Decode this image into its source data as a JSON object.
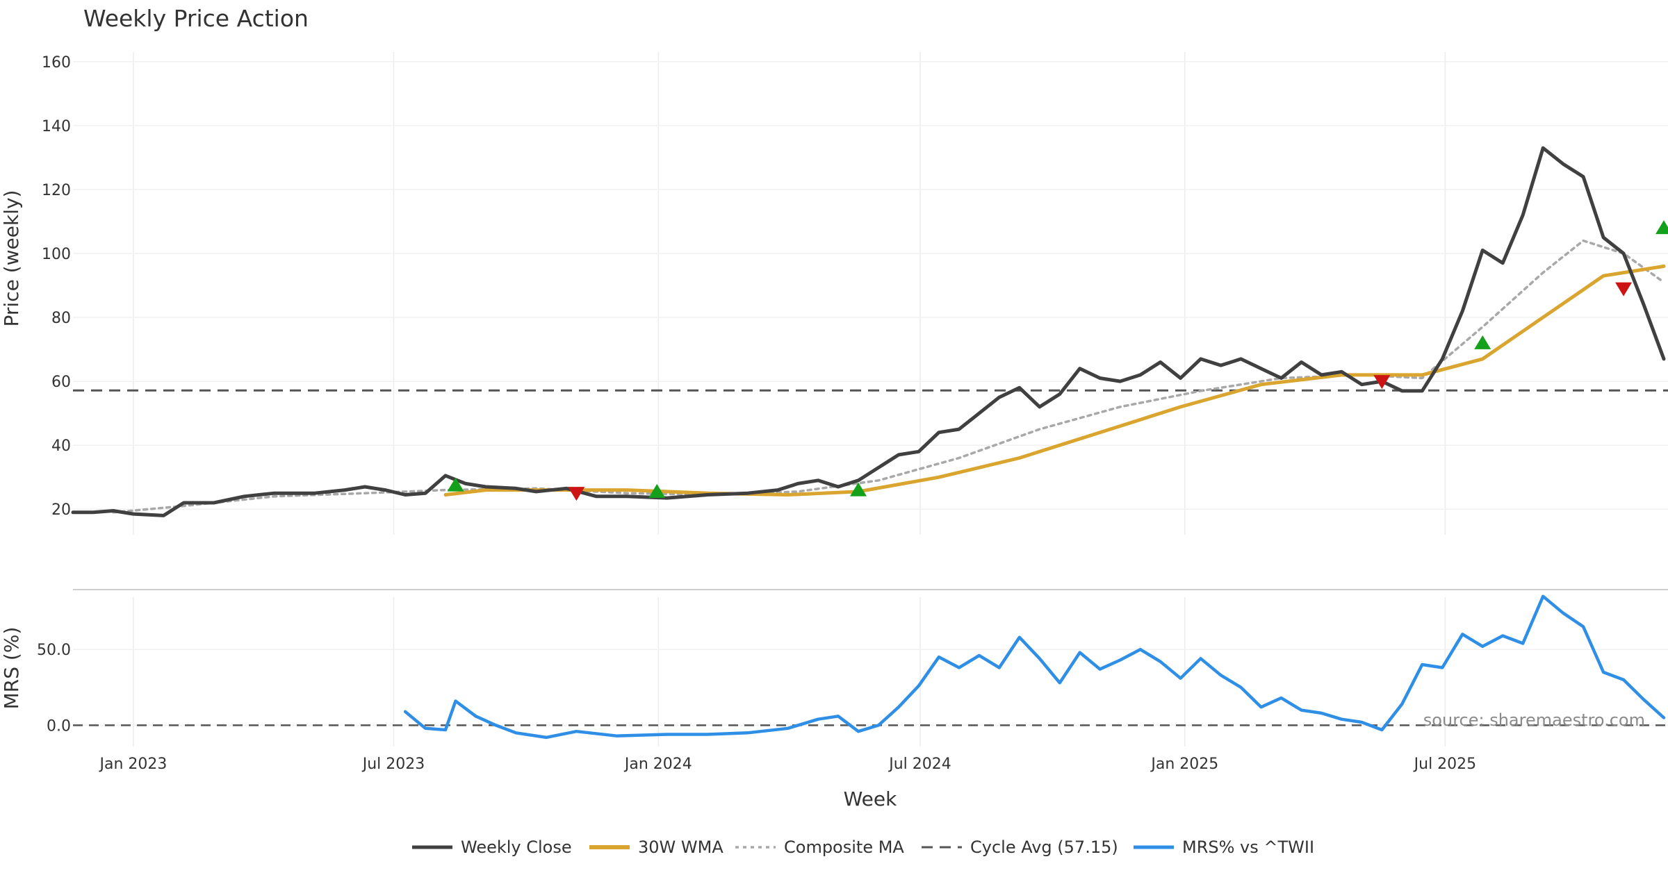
{
  "chart_data": {
    "type": "line",
    "title": "Weekly Price Action",
    "xlabel": "Week",
    "x_start": "2022-11-20",
    "x_end": "2025-11-30",
    "x_ticks": [
      {
        "date": "2023-01-01",
        "label": "Jan 2023"
      },
      {
        "date": "2023-07-01",
        "label": "Jul 2023"
      },
      {
        "date": "2024-01-01",
        "label": "Jan 2024"
      },
      {
        "date": "2024-07-01",
        "label": "Jul 2024"
      },
      {
        "date": "2025-01-01",
        "label": "Jan 2025"
      },
      {
        "date": "2025-07-01",
        "label": "Jul 2025"
      }
    ],
    "price_panel": {
      "ylabel": "Price (weekly)",
      "ylim": [
        12,
        163
      ],
      "yticks": [
        "20",
        "40",
        "60",
        "80",
        "100",
        "120",
        "140",
        "160"
      ],
      "grid": true,
      "cycle_avg": 57.15
    },
    "mrs_panel": {
      "ylabel": "MRS (%)",
      "ylim": [
        -14,
        89
      ],
      "yticks": [
        "0.0",
        "50.0"
      ],
      "grid": true,
      "zero_line": 0
    },
    "series": [
      {
        "name": "Weekly Close",
        "color": "#404040",
        "style": "solid",
        "points": [
          [
            "2022-11-20",
            19
          ],
          [
            "2022-12-04",
            19
          ],
          [
            "2022-12-18",
            19.5
          ],
          [
            "2023-01-01",
            18.5
          ],
          [
            "2023-01-22",
            18
          ],
          [
            "2023-02-05",
            22
          ],
          [
            "2023-02-26",
            22
          ],
          [
            "2023-03-19",
            24
          ],
          [
            "2023-04-09",
            25
          ],
          [
            "2023-05-07",
            25
          ],
          [
            "2023-05-28",
            26
          ],
          [
            "2023-06-11",
            27
          ],
          [
            "2023-06-25",
            26
          ],
          [
            "2023-07-09",
            24.5
          ],
          [
            "2023-07-23",
            25
          ],
          [
            "2023-08-06",
            30.5
          ],
          [
            "2023-08-20",
            28
          ],
          [
            "2023-09-03",
            27
          ],
          [
            "2023-09-24",
            26.5
          ],
          [
            "2023-10-08",
            25.5
          ],
          [
            "2023-10-29",
            26.5
          ],
          [
            "2023-11-19",
            24
          ],
          [
            "2023-12-10",
            24
          ],
          [
            "2024-01-07",
            23.5
          ],
          [
            "2024-02-04",
            24.5
          ],
          [
            "2024-03-03",
            25
          ],
          [
            "2024-03-24",
            26
          ],
          [
            "2024-04-07",
            28
          ],
          [
            "2024-04-21",
            29
          ],
          [
            "2024-05-05",
            27
          ],
          [
            "2024-05-19",
            29
          ],
          [
            "2024-06-02",
            33
          ],
          [
            "2024-06-16",
            37
          ],
          [
            "2024-06-30",
            38
          ],
          [
            "2024-07-14",
            44
          ],
          [
            "2024-07-28",
            45
          ],
          [
            "2024-08-11",
            50
          ],
          [
            "2024-08-25",
            55
          ],
          [
            "2024-09-08",
            58
          ],
          [
            "2024-09-22",
            52
          ],
          [
            "2024-10-06",
            56
          ],
          [
            "2024-10-20",
            64
          ],
          [
            "2024-11-03",
            61
          ],
          [
            "2024-11-17",
            60
          ],
          [
            "2024-12-01",
            62
          ],
          [
            "2024-12-15",
            66
          ],
          [
            "2024-12-29",
            61
          ],
          [
            "2025-01-12",
            67
          ],
          [
            "2025-01-26",
            65
          ],
          [
            "2025-02-09",
            67
          ],
          [
            "2025-02-23",
            64
          ],
          [
            "2025-03-09",
            61
          ],
          [
            "2025-03-23",
            66
          ],
          [
            "2025-04-06",
            62
          ],
          [
            "2025-04-20",
            63
          ],
          [
            "2025-05-04",
            59
          ],
          [
            "2025-05-18",
            60
          ],
          [
            "2025-06-01",
            57
          ],
          [
            "2025-06-15",
            57
          ],
          [
            "2025-06-29",
            67
          ],
          [
            "2025-07-13",
            82
          ],
          [
            "2025-07-27",
            101
          ],
          [
            "2025-08-10",
            97
          ],
          [
            "2025-08-24",
            112
          ],
          [
            "2025-09-07",
            133
          ],
          [
            "2025-09-21",
            128
          ],
          [
            "2025-10-05",
            124
          ],
          [
            "2025-10-19",
            105
          ],
          [
            "2025-11-02",
            100
          ],
          [
            "2025-11-16",
            84
          ],
          [
            "2025-11-30",
            67
          ]
        ]
      },
      {
        "name": "30W WMA",
        "color": "#d9a52e",
        "style": "solid",
        "points": [
          [
            "2023-08-06",
            24.5
          ],
          [
            "2023-09-03",
            26
          ],
          [
            "2023-12-10",
            26
          ],
          [
            "2024-02-04",
            25
          ],
          [
            "2024-03-31",
            24.5
          ],
          [
            "2024-05-19",
            25.5
          ],
          [
            "2024-07-14",
            30
          ],
          [
            "2024-09-08",
            36
          ],
          [
            "2024-11-03",
            44
          ],
          [
            "2024-12-29",
            52
          ],
          [
            "2025-02-23",
            59
          ],
          [
            "2025-04-20",
            62
          ],
          [
            "2025-06-15",
            62
          ],
          [
            "2025-07-27",
            67
          ],
          [
            "2025-09-07",
            80
          ],
          [
            "2025-10-19",
            93
          ],
          [
            "2025-11-30",
            96
          ]
        ]
      },
      {
        "name": "Composite MA",
        "color": "#a8a8a8",
        "style": "dotted",
        "points": [
          [
            "2022-12-18",
            19
          ],
          [
            "2023-02-05",
            21
          ],
          [
            "2023-04-09",
            24
          ],
          [
            "2023-06-11",
            25
          ],
          [
            "2023-08-06",
            26
          ],
          [
            "2023-10-08",
            26.5
          ],
          [
            "2023-12-10",
            25
          ],
          [
            "2024-02-04",
            24.5
          ],
          [
            "2024-04-07",
            25.5
          ],
          [
            "2024-06-02",
            29
          ],
          [
            "2024-07-28",
            36
          ],
          [
            "2024-09-22",
            45
          ],
          [
            "2024-11-17",
            52
          ],
          [
            "2025-01-12",
            57
          ],
          [
            "2025-03-09",
            61
          ],
          [
            "2025-05-04",
            62
          ],
          [
            "2025-06-15",
            61
          ],
          [
            "2025-07-27",
            77
          ],
          [
            "2025-09-07",
            94
          ],
          [
            "2025-10-05",
            104
          ],
          [
            "2025-11-02",
            100
          ],
          [
            "2025-11-30",
            91
          ]
        ]
      },
      {
        "name": "Cycle Avg (57.15)",
        "color": "#555555",
        "style": "dashed",
        "points": []
      },
      {
        "name": "MRS% vs ^TWII",
        "color": "#2f8fe6",
        "style": "solid",
        "points": [
          [
            "2023-07-09",
            9
          ],
          [
            "2023-07-23",
            -2
          ],
          [
            "2023-08-06",
            -3
          ],
          [
            "2023-08-13",
            16
          ],
          [
            "2023-08-27",
            6
          ],
          [
            "2023-09-10",
            0
          ],
          [
            "2023-09-24",
            -5
          ],
          [
            "2023-10-15",
            -8
          ],
          [
            "2023-11-05",
            -4
          ],
          [
            "2023-12-03",
            -7
          ],
          [
            "2024-01-07",
            -6
          ],
          [
            "2024-02-04",
            -6
          ],
          [
            "2024-03-03",
            -5
          ],
          [
            "2024-03-31",
            -2
          ],
          [
            "2024-04-21",
            4
          ],
          [
            "2024-05-05",
            6
          ],
          [
            "2024-05-19",
            -4
          ],
          [
            "2024-06-02",
            0
          ],
          [
            "2024-06-16",
            12
          ],
          [
            "2024-06-30",
            26
          ],
          [
            "2024-07-14",
            45
          ],
          [
            "2024-07-28",
            38
          ],
          [
            "2024-08-11",
            46
          ],
          [
            "2024-08-25",
            38
          ],
          [
            "2024-09-08",
            58
          ],
          [
            "2024-09-22",
            44
          ],
          [
            "2024-10-06",
            28
          ],
          [
            "2024-10-20",
            48
          ],
          [
            "2024-11-03",
            37
          ],
          [
            "2024-11-17",
            43
          ],
          [
            "2024-12-01",
            50
          ],
          [
            "2024-12-15",
            42
          ],
          [
            "2024-12-29",
            31
          ],
          [
            "2025-01-12",
            44
          ],
          [
            "2025-01-26",
            33
          ],
          [
            "2025-02-09",
            25
          ],
          [
            "2025-02-23",
            12
          ],
          [
            "2025-03-09",
            18
          ],
          [
            "2025-03-23",
            10
          ],
          [
            "2025-04-06",
            8
          ],
          [
            "2025-04-20",
            4
          ],
          [
            "2025-05-04",
            2
          ],
          [
            "2025-05-18",
            -3
          ],
          [
            "2025-06-01",
            14
          ],
          [
            "2025-06-15",
            40
          ],
          [
            "2025-06-29",
            38
          ],
          [
            "2025-07-13",
            60
          ],
          [
            "2025-07-27",
            52
          ],
          [
            "2025-08-10",
            59
          ],
          [
            "2025-08-24",
            54
          ],
          [
            "2025-09-07",
            85
          ],
          [
            "2025-09-21",
            74
          ],
          [
            "2025-10-05",
            65
          ],
          [
            "2025-10-19",
            35
          ],
          [
            "2025-11-02",
            30
          ],
          [
            "2025-11-16",
            17
          ],
          [
            "2025-11-30",
            5
          ]
        ]
      }
    ],
    "signals": {
      "buy": [
        [
          "2023-08-13",
          27.5
        ],
        [
          "2023-12-31",
          25.5
        ],
        [
          "2024-05-19",
          26
        ],
        [
          "2025-07-27",
          72
        ],
        [
          "2025-11-30",
          108
        ]
      ],
      "sell": [
        [
          "2023-11-05",
          25
        ],
        [
          "2025-05-18",
          60
        ],
        [
          "2025-11-02",
          89
        ]
      ]
    },
    "legend_position": "bottom-center",
    "source": "source: sharemaestro.com"
  }
}
